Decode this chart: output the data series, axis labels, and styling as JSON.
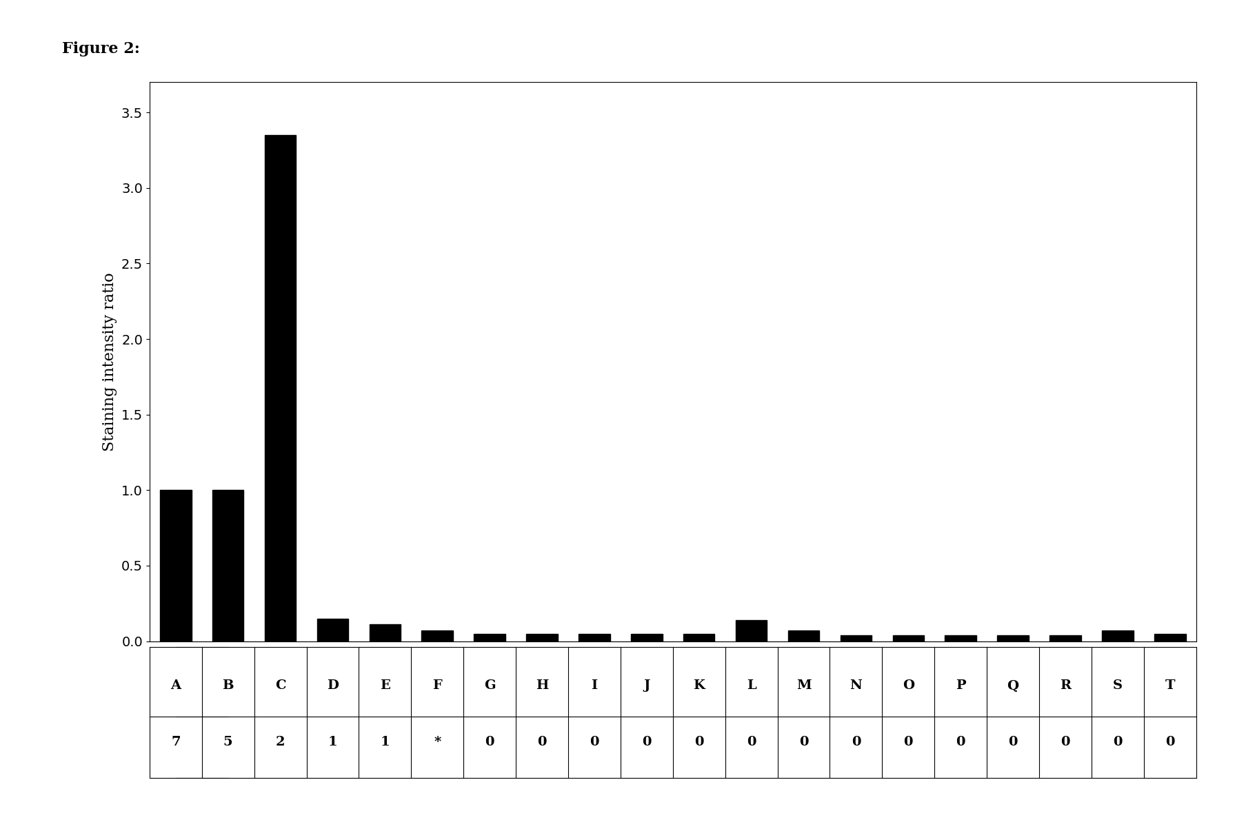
{
  "categories": [
    "A",
    "B",
    "C",
    "D",
    "E",
    "F",
    "G",
    "H",
    "I",
    "J",
    "K",
    "L",
    "M",
    "N",
    "O",
    "P",
    "Q",
    "R",
    "S",
    "T"
  ],
  "sublabels": [
    "7",
    "5",
    "2",
    "1",
    "1",
    "*",
    "0",
    "0",
    "0",
    "0",
    "0",
    "0",
    "0",
    "0",
    "0",
    "0",
    "0",
    "0",
    "0",
    "0"
  ],
  "values": [
    1.0,
    1.0,
    3.35,
    0.15,
    0.11,
    0.07,
    0.05,
    0.05,
    0.05,
    0.05,
    0.05,
    0.14,
    0.07,
    0.04,
    0.04,
    0.04,
    0.04,
    0.04,
    0.07,
    0.05
  ],
  "bar_color": "#000000",
  "ylabel": "Staining intensity ratio",
  "ylim": [
    0.0,
    3.7
  ],
  "yticks": [
    0.0,
    0.5,
    1.0,
    1.5,
    2.0,
    2.5,
    3.0,
    3.5
  ],
  "figure_label": "Figure 2:",
  "background_color": "#ffffff",
  "title_fontsize": 16,
  "ylabel_fontsize": 16,
  "tick_fontsize": 14,
  "label_fontsize": 14,
  "sublabel_fontsize": 14
}
